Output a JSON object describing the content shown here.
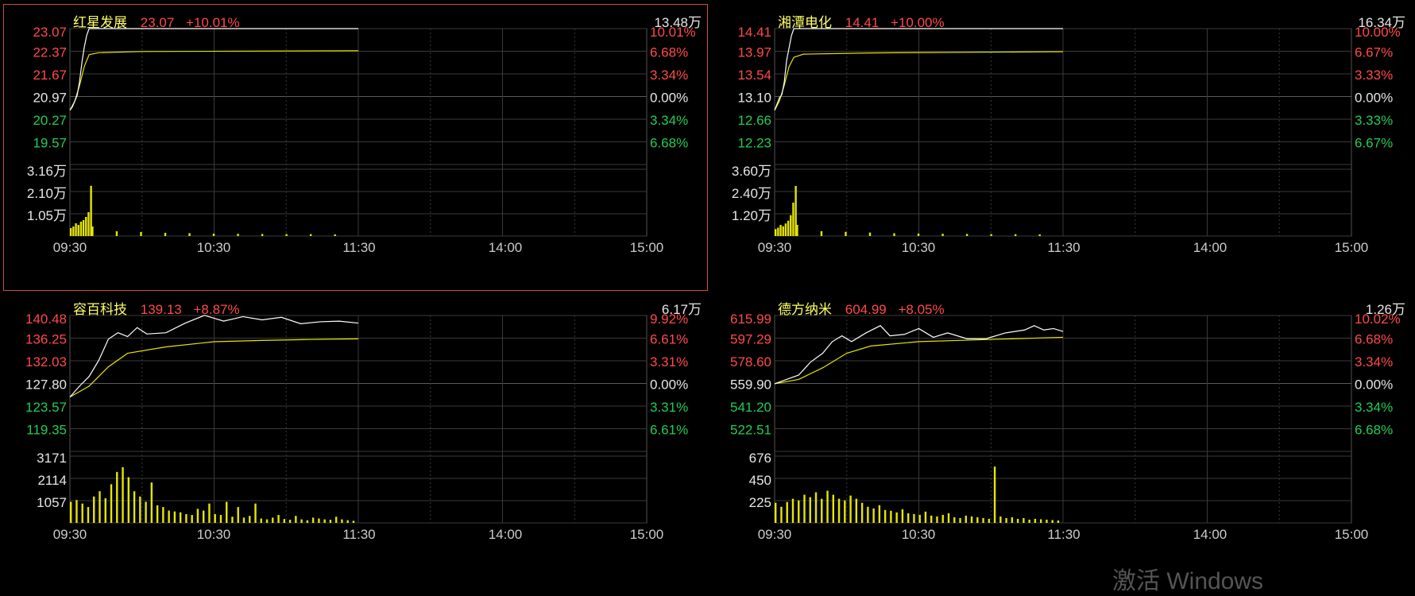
{
  "colors": {
    "background": "#000000",
    "grid": "#3a3a3a",
    "frame": "#555555",
    "up": "#ff4a4a",
    "down": "#22cc55",
    "flat": "#e6e6e6",
    "price_line": "#ffffff",
    "avg_line": "#e6e600",
    "volume": "#e6e600",
    "name": "#ffff66",
    "active_border": "#c8552a"
  },
  "time_labels": [
    "09:30",
    "10:30",
    "11:30",
    "14:00",
    "15:00"
  ],
  "watermark": "激活 Windows",
  "panels": [
    {
      "name": "红星发展",
      "price": "23.07",
      "pct": "+10.01%",
      "max_vol": "13.48万",
      "y_labels": [
        "23.07",
        "22.37",
        "21.67",
        "20.97",
        "20.27",
        "19.57"
      ],
      "pct_labels": [
        "10.01%",
        "6.68%",
        "3.34%",
        "0.00%",
        "3.34%",
        "6.68%"
      ],
      "vol_labels": [
        "3.16万",
        "2.10万",
        "1.05万"
      ],
      "chart_data": {
        "type": "line",
        "price_range": [
          19.57,
          23.07
        ],
        "price_points": [
          [
            0,
            20.97
          ],
          [
            1,
            21.05
          ],
          [
            2,
            21.2
          ],
          [
            3,
            21.35
          ],
          [
            4,
            21.7
          ],
          [
            5,
            22.2
          ],
          [
            6,
            22.6
          ],
          [
            7,
            22.9
          ],
          [
            8,
            23.07
          ],
          [
            120,
            23.07
          ]
        ],
        "avg_points": [
          [
            0,
            20.97
          ],
          [
            2,
            21.2
          ],
          [
            4,
            21.6
          ],
          [
            6,
            22.1
          ],
          [
            8,
            22.4
          ],
          [
            12,
            22.45
          ],
          [
            30,
            22.48
          ],
          [
            120,
            22.5
          ]
        ],
        "vol_max": 4.2,
        "vol_unit": "万",
        "volume": [
          0.5,
          0.6,
          0.8,
          0.7,
          0.9,
          1.0,
          1.2,
          1.5,
          3.16,
          0.6,
          0.3,
          0.25,
          0.2,
          0.18,
          0.15,
          0.14,
          0.13,
          0.12,
          0.12,
          0.1
        ]
      }
    },
    {
      "name": "湘潭电化",
      "price": "14.41",
      "pct": "+10.00%",
      "max_vol": "16.34万",
      "y_labels": [
        "14.41",
        "13.97",
        "13.54",
        "13.10",
        "12.66",
        "12.23"
      ],
      "pct_labels": [
        "10.00%",
        "6.67%",
        "3.33%",
        "0.00%",
        "3.33%",
        "6.67%"
      ],
      "vol_labels": [
        "3.60万",
        "2.40万",
        "1.20万"
      ],
      "chart_data": {
        "type": "line",
        "price_range": [
          12.23,
          14.41
        ],
        "price_points": [
          [
            0,
            13.1
          ],
          [
            1,
            13.2
          ],
          [
            2,
            13.3
          ],
          [
            3,
            13.35
          ],
          [
            4,
            13.55
          ],
          [
            5,
            13.9
          ],
          [
            6,
            14.1
          ],
          [
            7,
            14.3
          ],
          [
            8,
            14.41
          ],
          [
            120,
            14.41
          ]
        ],
        "avg_points": [
          [
            0,
            13.1
          ],
          [
            2,
            13.25
          ],
          [
            4,
            13.5
          ],
          [
            6,
            13.8
          ],
          [
            8,
            13.95
          ],
          [
            12,
            14.0
          ],
          [
            40,
            14.02
          ],
          [
            120,
            14.04
          ]
        ],
        "vol_max": 4.8,
        "vol_unit": "万",
        "volume": [
          0.5,
          0.6,
          0.8,
          0.7,
          0.9,
          1.1,
          1.5,
          2.4,
          3.6,
          0.8,
          0.35,
          0.3,
          0.25,
          0.2,
          0.18,
          0.16,
          0.15,
          0.14,
          0.13,
          0.12
        ]
      }
    },
    {
      "name": "容百科技",
      "price": "139.13",
      "pct": "+8.87%",
      "max_vol": "6.17万",
      "y_labels": [
        "140.48",
        "136.25",
        "132.03",
        "127.80",
        "123.57",
        "119.35"
      ],
      "pct_labels": [
        "9.92%",
        "6.61%",
        "3.31%",
        "0.00%",
        "3.31%",
        "6.61%"
      ],
      "vol_labels": [
        "3171",
        "2114",
        "1057"
      ],
      "chart_data": {
        "type": "line",
        "price_range": [
          119.35,
          140.48
        ],
        "price_points": [
          [
            0,
            127.8
          ],
          [
            4,
            129.5
          ],
          [
            8,
            131.0
          ],
          [
            12,
            133.5
          ],
          [
            16,
            136.8
          ],
          [
            20,
            137.8
          ],
          [
            24,
            137.2
          ],
          [
            28,
            138.6
          ],
          [
            32,
            137.6
          ],
          [
            40,
            137.8
          ],
          [
            48,
            139.3
          ],
          [
            56,
            140.5
          ],
          [
            64,
            139.6
          ],
          [
            72,
            140.3
          ],
          [
            80,
            139.8
          ],
          [
            88,
            140.2
          ],
          [
            96,
            139.2
          ],
          [
            104,
            139.5
          ],
          [
            112,
            139.6
          ],
          [
            120,
            139.3
          ]
        ],
        "avg_points": [
          [
            0,
            127.8
          ],
          [
            8,
            129.5
          ],
          [
            16,
            132.5
          ],
          [
            24,
            134.6
          ],
          [
            40,
            135.6
          ],
          [
            60,
            136.4
          ],
          [
            80,
            136.6
          ],
          [
            100,
            136.75
          ],
          [
            120,
            136.85
          ]
        ],
        "vol_max": 3800,
        "vol_unit": "",
        "volume": [
          1200,
          1300,
          1100,
          900,
          1500,
          1800,
          1400,
          2200,
          2900,
          3171,
          2600,
          1800,
          1500,
          1200,
          2300,
          1000,
          900,
          700,
          650,
          600,
          500,
          450,
          800,
          700,
          1100,
          500,
          450,
          1200,
          350,
          900,
          300,
          400,
          1100,
          250,
          200,
          300,
          450,
          220,
          180,
          400,
          200,
          150,
          300,
          250,
          200,
          180,
          350,
          200,
          150,
          120
        ]
      }
    },
    {
      "name": "德方纳米",
      "price": "604.99",
      "pct": "+8.05%",
      "max_vol": "1.26万",
      "y_labels": [
        "615.99",
        "597.29",
        "578.60",
        "559.90",
        "541.20",
        "522.51"
      ],
      "pct_labels": [
        "10.02%",
        "6.68%",
        "3.34%",
        "0.00%",
        "3.34%",
        "6.68%"
      ],
      "vol_labels": [
        "676",
        "450",
        "225"
      ],
      "chart_data": {
        "type": "line",
        "price_range": [
          522.51,
          615.99
        ],
        "price_points": [
          [
            0,
            569
          ],
          [
            5,
            572
          ],
          [
            10,
            575
          ],
          [
            15,
            584
          ],
          [
            20,
            590
          ],
          [
            24,
            598
          ],
          [
            28,
            602
          ],
          [
            32,
            598
          ],
          [
            38,
            604
          ],
          [
            44,
            609
          ],
          [
            48,
            602
          ],
          [
            54,
            603
          ],
          [
            60,
            607
          ],
          [
            66,
            601
          ],
          [
            72,
            604
          ],
          [
            80,
            600
          ],
          [
            88,
            600
          ],
          [
            96,
            604
          ],
          [
            104,
            606
          ],
          [
            108,
            609
          ],
          [
            112,
            606
          ],
          [
            116,
            607
          ],
          [
            120,
            605
          ]
        ],
        "avg_points": [
          [
            0,
            569
          ],
          [
            10,
            572
          ],
          [
            20,
            580
          ],
          [
            30,
            590
          ],
          [
            40,
            595
          ],
          [
            60,
            598
          ],
          [
            80,
            599
          ],
          [
            100,
            600
          ],
          [
            120,
            601
          ]
        ],
        "vol_max": 830,
        "vol_unit": "",
        "volume": [
          250,
          200,
          260,
          300,
          280,
          350,
          320,
          380,
          300,
          400,
          350,
          300,
          280,
          340,
          300,
          250,
          200,
          180,
          220,
          160,
          150,
          130,
          170,
          120,
          110,
          100,
          140,
          90,
          80,
          100,
          120,
          70,
          60,
          90,
          80,
          70,
          60,
          50,
          700,
          80,
          60,
          70,
          50,
          60,
          40,
          50,
          45,
          40,
          35,
          30
        ]
      }
    }
  ]
}
